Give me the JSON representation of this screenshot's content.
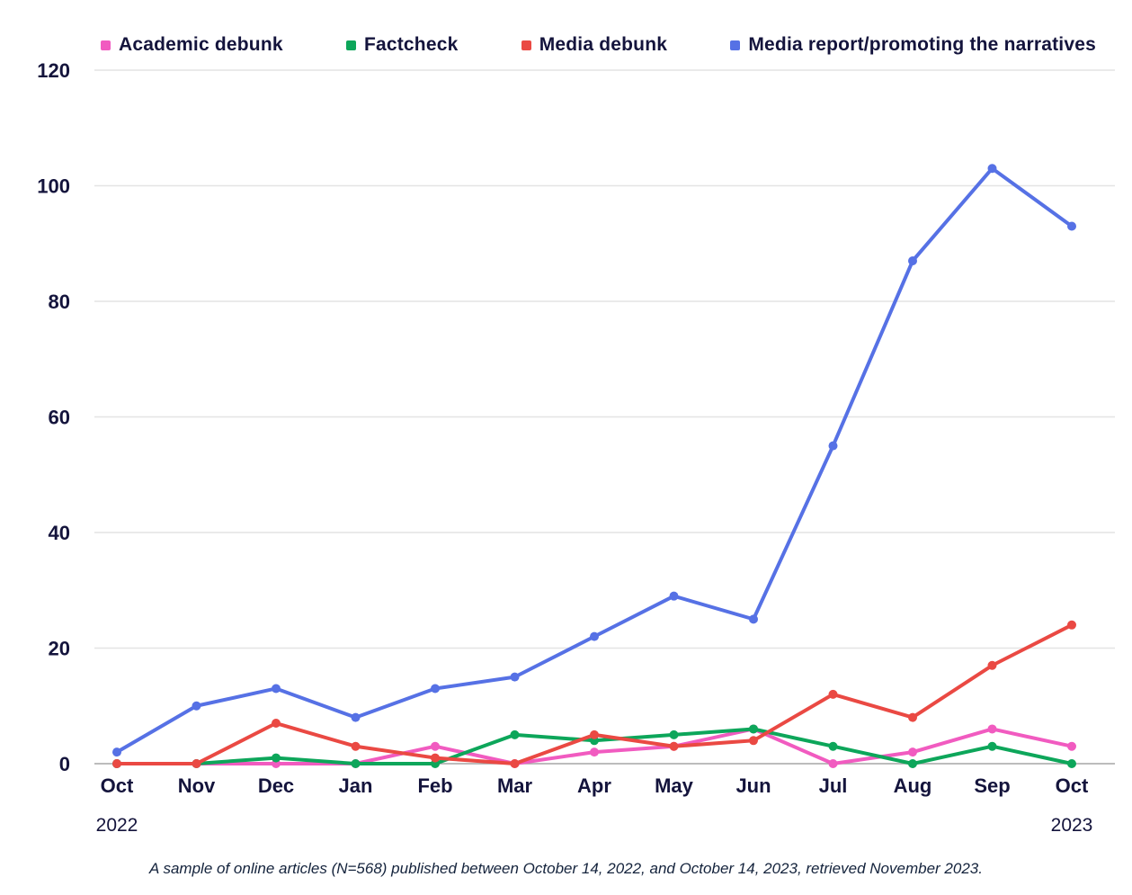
{
  "caption": "A sample of online articles (N=568) published between October 14, 2022, and October 14, 2023, retrieved November 2023.",
  "x_axis": {
    "year_start": "2022",
    "year_end": "2023"
  },
  "colors": {
    "text": "#14143C",
    "gridline": "#E4E4E4",
    "zero_axis_line": "#A6A6A6",
    "background": "#FFFFFF"
  },
  "chart_data": {
    "type": "line",
    "title": "",
    "xlabel": "",
    "ylabel": "",
    "categories": [
      "Oct",
      "Nov",
      "Dec",
      "Jan",
      "Feb",
      "Mar",
      "Apr",
      "May",
      "Jun",
      "Jul",
      "Aug",
      "Sep",
      "Oct"
    ],
    "y_ticks": [
      0,
      20,
      40,
      60,
      80,
      100,
      120
    ],
    "ylim": [
      0,
      120
    ],
    "grid": true,
    "legend_position": "top",
    "series": [
      {
        "name": "Academic debunk",
        "color": "#F15BC0",
        "values": [
          0,
          0,
          0,
          0,
          3,
          0,
          2,
          3,
          6,
          0,
          2,
          6,
          3
        ]
      },
      {
        "name": "Factcheck",
        "color": "#0DA65A",
        "values": [
          0,
          0,
          1,
          0,
          0,
          5,
          4,
          5,
          6,
          3,
          0,
          3,
          0
        ]
      },
      {
        "name": "Media debunk",
        "color": "#EA4943",
        "values": [
          0,
          0,
          7,
          3,
          1,
          0,
          5,
          3,
          4,
          12,
          8,
          17,
          24
        ]
      },
      {
        "name": "Media report/promoting the narratives",
        "color": "#5671E5",
        "values": [
          2,
          10,
          13,
          8,
          13,
          15,
          22,
          29,
          25,
          55,
          87,
          103,
          93
        ]
      }
    ]
  }
}
